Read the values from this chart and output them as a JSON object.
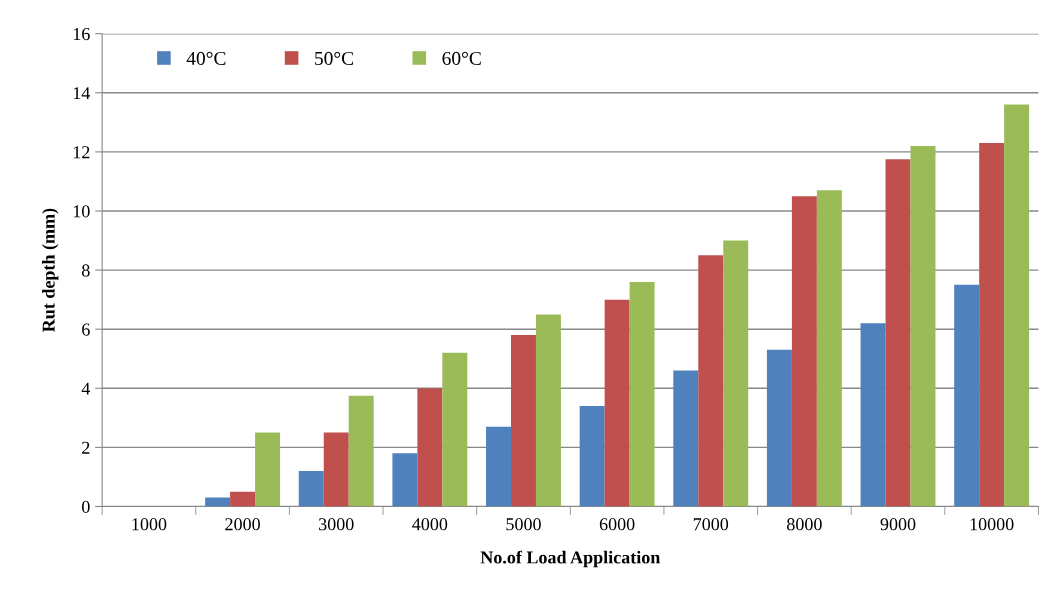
{
  "chart_data": {
    "type": "bar",
    "xlabel": "No.of Load Application",
    "ylabel": "Rut depth (mm)",
    "categories": [
      "1000",
      "2000",
      "3000",
      "4000",
      "5000",
      "6000",
      "7000",
      "8000",
      "9000",
      "10000"
    ],
    "series": [
      {
        "name": "40°C",
        "color": "#4f81bd",
        "values": [
          0,
          0.3,
          1.2,
          1.8,
          2.7,
          3.4,
          4.6,
          5.3,
          6.2,
          7.5
        ]
      },
      {
        "name": "50°C",
        "color": "#c0504d",
        "values": [
          0,
          0.5,
          2.5,
          4.0,
          5.8,
          7.0,
          8.5,
          10.5,
          11.75,
          12.3
        ]
      },
      {
        "name": "60°C",
        "color": "#9bbb59",
        "values": [
          0,
          2.5,
          3.75,
          5.2,
          6.5,
          7.6,
          9.0,
          10.7,
          12.2,
          13.6
        ]
      }
    ],
    "ylim": [
      0,
      16
    ],
    "yticks": [
      0,
      2,
      4,
      6,
      8,
      10,
      12,
      14,
      16
    ],
    "grid": "y",
    "legend": "top left"
  }
}
